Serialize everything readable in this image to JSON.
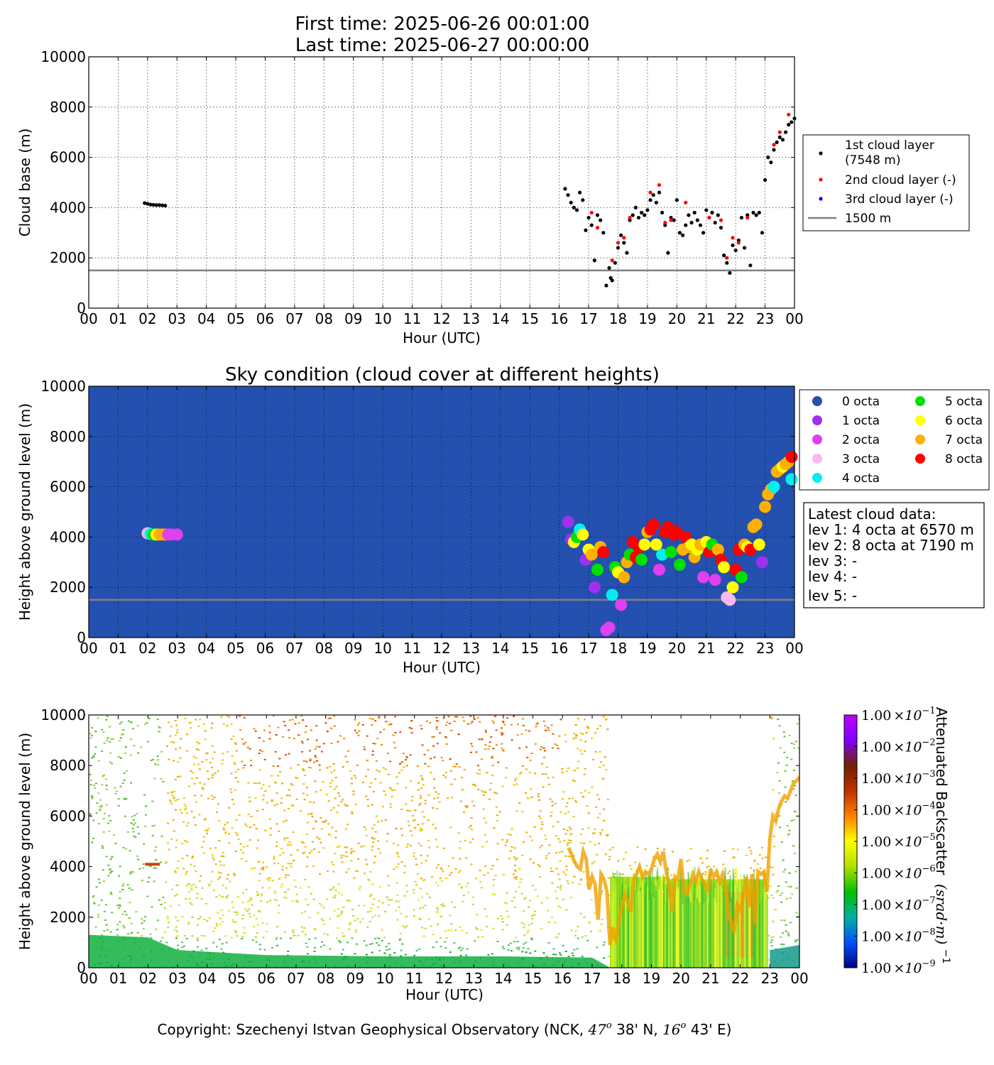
{
  "header": {
    "first_time": "First time: 2025-06-26 00:01:00",
    "last_time": "Last time: 2025-06-27 00:00:00"
  },
  "hour_ticks": [
    "00",
    "01",
    "02",
    "03",
    "04",
    "05",
    "06",
    "07",
    "08",
    "09",
    "10",
    "11",
    "12",
    "13",
    "14",
    "15",
    "16",
    "17",
    "18",
    "19",
    "20",
    "21",
    "22",
    "23",
    "00"
  ],
  "height_ticks": [
    "0",
    "2000",
    "4000",
    "6000",
    "8000",
    "10000"
  ],
  "colors": {
    "layer1": "#000000",
    "layer2": "#ff0000",
    "layer3": "#0000ff",
    "threshold": "#808080",
    "sky_bg": "#2450b0"
  },
  "chart_data": [
    {
      "type": "scatter",
      "xlabel": "Hour (UTC)",
      "ylabel": "Cloud base (m)",
      "xlim": [
        0,
        24
      ],
      "ylim": [
        0,
        10000
      ],
      "grid": true,
      "legend_position": "right",
      "series": [
        {
          "name": "1st cloud layer\n(7548 m)",
          "color": "#000000",
          "points": [
            [
              1.9,
              4180
            ],
            [
              2.0,
              4150
            ],
            [
              2.1,
              4120
            ],
            [
              2.2,
              4110
            ],
            [
              2.3,
              4100
            ],
            [
              2.4,
              4100
            ],
            [
              2.5,
              4090
            ],
            [
              2.6,
              4080
            ],
            [
              16.2,
              4750
            ],
            [
              16.3,
              4500
            ],
            [
              16.4,
              4200
            ],
            [
              16.5,
              4000
            ],
            [
              16.6,
              3900
            ],
            [
              16.7,
              4600
            ],
            [
              16.8,
              4300
            ],
            [
              16.9,
              3100
            ],
            [
              17.0,
              3600
            ],
            [
              17.1,
              3300
            ],
            [
              17.2,
              1900
            ],
            [
              17.3,
              3700
            ],
            [
              17.4,
              3500
            ],
            [
              17.5,
              3000
            ],
            [
              17.6,
              900
            ],
            [
              17.7,
              1600
            ],
            [
              17.75,
              1200
            ],
            [
              17.8,
              1100
            ],
            [
              17.9,
              1800
            ],
            [
              18.0,
              2400
            ],
            [
              18.1,
              2900
            ],
            [
              18.2,
              2600
            ],
            [
              18.3,
              2200
            ],
            [
              18.4,
              3500
            ],
            [
              18.5,
              3700
            ],
            [
              18.6,
              4000
            ],
            [
              18.7,
              3600
            ],
            [
              18.8,
              3800
            ],
            [
              18.9,
              3700
            ],
            [
              19.0,
              3900
            ],
            [
              19.1,
              4300
            ],
            [
              19.2,
              4500
            ],
            [
              19.3,
              4200
            ],
            [
              19.4,
              4600
            ],
            [
              19.5,
              3800
            ],
            [
              19.6,
              3300
            ],
            [
              19.7,
              2200
            ],
            [
              19.8,
              3600
            ],
            [
              19.9,
              3500
            ],
            [
              20.0,
              4300
            ],
            [
              20.1,
              3000
            ],
            [
              20.2,
              2900
            ],
            [
              20.3,
              3300
            ],
            [
              20.4,
              3700
            ],
            [
              20.5,
              3400
            ],
            [
              20.6,
              3800
            ],
            [
              20.7,
              3500
            ],
            [
              20.8,
              3300
            ],
            [
              20.9,
              3000
            ],
            [
              21.0,
              3900
            ],
            [
              21.1,
              3600
            ],
            [
              21.2,
              3800
            ],
            [
              21.3,
              3400
            ],
            [
              21.4,
              3700
            ],
            [
              21.5,
              3200
            ],
            [
              21.6,
              2100
            ],
            [
              21.7,
              1800
            ],
            [
              21.8,
              1400
            ],
            [
              21.9,
              2500
            ],
            [
              22.0,
              2300
            ],
            [
              22.1,
              2700
            ],
            [
              22.2,
              3600
            ],
            [
              22.3,
              2400
            ],
            [
              22.4,
              3700
            ],
            [
              22.5,
              1700
            ],
            [
              22.6,
              3800
            ],
            [
              22.7,
              3700
            ],
            [
              22.8,
              3800
            ],
            [
              22.9,
              3000
            ],
            [
              23.0,
              5100
            ],
            [
              23.1,
              6000
            ],
            [
              23.2,
              5800
            ],
            [
              23.3,
              6300
            ],
            [
              23.4,
              6600
            ],
            [
              23.5,
              6800
            ],
            [
              23.6,
              6700
            ],
            [
              23.7,
              7000
            ],
            [
              23.8,
              7300
            ],
            [
              23.9,
              7400
            ],
            [
              24.0,
              7548
            ]
          ]
        },
        {
          "name": "2nd cloud layer (-)",
          "color": "#ff0000",
          "points": [
            [
              17.1,
              3800
            ],
            [
              17.3,
              3200
            ],
            [
              17.8,
              1900
            ],
            [
              18.0,
              2600
            ],
            [
              18.2,
              2800
            ],
            [
              18.4,
              3600
            ],
            [
              19.1,
              4600
            ],
            [
              19.4,
              4900
            ],
            [
              19.6,
              3400
            ],
            [
              19.8,
              3500
            ],
            [
              20.3,
              4200
            ],
            [
              21.1,
              3600
            ],
            [
              21.5,
              3500
            ],
            [
              21.7,
              2000
            ],
            [
              21.9,
              2800
            ],
            [
              22.1,
              2600
            ],
            [
              22.4,
              3600
            ],
            [
              23.3,
              6500
            ],
            [
              23.5,
              7000
            ],
            [
              23.8,
              7700
            ]
          ]
        },
        {
          "name": "3rd cloud layer (-)",
          "color": "#0000ff",
          "points": []
        },
        {
          "name": "1500 m",
          "color": "#808080",
          "type": "hline",
          "y": 1500
        }
      ]
    },
    {
      "type": "scatter",
      "title": "Sky condition (cloud cover at different heights)",
      "xlabel": "Hour (UTC)",
      "ylabel": "Height above ground level (m)",
      "xlim": [
        0,
        24
      ],
      "ylim": [
        0,
        10000
      ],
      "grid": true,
      "background": "#2450b0",
      "threshold_m": 1500,
      "legend": [
        {
          "label": "0 octa",
          "color": "#2450b0"
        },
        {
          "label": "1 octa",
          "color": "#9f30f0"
        },
        {
          "label": "2 octa",
          "color": "#e040f0"
        },
        {
          "label": "3 octa",
          "color": "#f8b8f0"
        },
        {
          "label": "4 octa",
          "color": "#00f0f0"
        },
        {
          "label": "5 octa",
          "color": "#00e000"
        },
        {
          "label": "6 octa",
          "color": "#ffff00"
        },
        {
          "label": "7 octa",
          "color": "#ffb000"
        },
        {
          "label": "8 octa",
          "color": "#ff0000"
        }
      ],
      "points": [
        [
          2.0,
          4150,
          3
        ],
        [
          2.1,
          4120,
          4
        ],
        [
          2.2,
          4100,
          5
        ],
        [
          2.3,
          4100,
          6
        ],
        [
          2.4,
          4100,
          7
        ],
        [
          2.5,
          4100,
          7
        ],
        [
          2.6,
          4100,
          7
        ],
        [
          2.7,
          4100,
          2
        ],
        [
          2.8,
          4100,
          2
        ],
        [
          3.0,
          4100,
          2
        ],
        [
          16.3,
          4600,
          1
        ],
        [
          16.4,
          3900,
          1
        ],
        [
          16.5,
          3800,
          6
        ],
        [
          16.6,
          4000,
          5
        ],
        [
          16.7,
          4300,
          4
        ],
        [
          16.8,
          4100,
          6
        ],
        [
          16.9,
          3100,
          1
        ],
        [
          17.0,
          3500,
          6
        ],
        [
          17.1,
          3300,
          7
        ],
        [
          17.2,
          2000,
          1
        ],
        [
          17.3,
          2700,
          5
        ],
        [
          17.4,
          3600,
          7
        ],
        [
          17.5,
          3400,
          8
        ],
        [
          17.6,
          300,
          2
        ],
        [
          17.7,
          400,
          2
        ],
        [
          17.8,
          1700,
          4
        ],
        [
          17.9,
          2800,
          5
        ],
        [
          18.0,
          2600,
          6
        ],
        [
          18.1,
          1300,
          2
        ],
        [
          18.2,
          2400,
          7
        ],
        [
          18.3,
          3000,
          7
        ],
        [
          18.4,
          3300,
          5
        ],
        [
          18.5,
          3800,
          8
        ],
        [
          18.6,
          3200,
          8
        ],
        [
          18.7,
          3600,
          8
        ],
        [
          18.8,
          3100,
          5
        ],
        [
          18.9,
          3700,
          6
        ],
        [
          19.0,
          4200,
          7
        ],
        [
          19.1,
          4300,
          8
        ],
        [
          19.2,
          4500,
          8
        ],
        [
          19.3,
          3700,
          6
        ],
        [
          19.4,
          2700,
          2
        ],
        [
          19.5,
          3300,
          4
        ],
        [
          19.6,
          4200,
          8
        ],
        [
          19.7,
          4400,
          8
        ],
        [
          19.8,
          3400,
          5
        ],
        [
          19.9,
          4100,
          8
        ],
        [
          20.0,
          4200,
          8
        ],
        [
          20.1,
          2900,
          5
        ],
        [
          20.2,
          3500,
          7
        ],
        [
          20.3,
          4000,
          8
        ],
        [
          20.4,
          3600,
          7
        ],
        [
          20.5,
          3700,
          6
        ],
        [
          20.6,
          3200,
          7
        ],
        [
          20.7,
          3500,
          6
        ],
        [
          20.8,
          3700,
          7
        ],
        [
          20.9,
          2400,
          2
        ],
        [
          21.0,
          3800,
          6
        ],
        [
          21.1,
          3400,
          8
        ],
        [
          21.2,
          3700,
          5
        ],
        [
          21.3,
          2300,
          2
        ],
        [
          21.4,
          3500,
          7
        ],
        [
          21.5,
          3100,
          8
        ],
        [
          21.6,
          2800,
          6
        ],
        [
          21.7,
          1600,
          3
        ],
        [
          21.8,
          1500,
          3
        ],
        [
          21.9,
          2000,
          6
        ],
        [
          22.0,
          2700,
          8
        ],
        [
          22.1,
          3500,
          8
        ],
        [
          22.2,
          2400,
          5
        ],
        [
          22.3,
          3700,
          7
        ],
        [
          22.4,
          3600,
          6
        ],
        [
          22.5,
          3500,
          8
        ],
        [
          22.6,
          4400,
          7
        ],
        [
          22.7,
          4500,
          7
        ],
        [
          22.8,
          3700,
          6
        ],
        [
          22.9,
          3000,
          1
        ],
        [
          23.0,
          5200,
          7
        ],
        [
          23.1,
          5700,
          7
        ],
        [
          23.2,
          5900,
          7
        ],
        [
          23.3,
          6000,
          4
        ],
        [
          23.4,
          6600,
          7
        ],
        [
          23.5,
          6700,
          7
        ],
        [
          23.6,
          6800,
          6
        ],
        [
          23.7,
          6900,
          7
        ],
        [
          23.8,
          7000,
          7
        ],
        [
          23.9,
          6300,
          4
        ],
        [
          24.0,
          7190,
          8
        ]
      ],
      "latest_cloud_data": [
        "Latest cloud data:",
        "lev 1: 4 octa at 6570 m",
        "lev 2: 8 octa at 7190 m",
        "lev 3: -",
        "lev 4: -",
        "lev 5: -"
      ]
    },
    {
      "type": "heatmap",
      "xlabel": "Hour (UTC)",
      "ylabel": "Height above ground level (m)",
      "xlim": [
        0,
        24
      ],
      "ylim": [
        0,
        10000
      ],
      "colorbar_label": "Attenuated Backscatter",
      "colorbar_unit": "(srad·m)",
      "colorbar_unit_exp": "−1",
      "colorbar_scale": "log",
      "colorbar_ticks": [
        {
          "mant": "1.00",
          "times": "×10",
          "exp": "−9"
        },
        {
          "mant": "1.00",
          "times": "×10",
          "exp": "−8"
        },
        {
          "mant": "1.00",
          "times": "×10",
          "exp": "−7"
        },
        {
          "mant": "1.00",
          "times": "×10",
          "exp": "−6"
        },
        {
          "mant": "1.00",
          "times": "×10",
          "exp": "−5"
        },
        {
          "mant": "1.00",
          "times": "×10",
          "exp": "−4"
        },
        {
          "mant": "1.00",
          "times": "×10",
          "exp": "−3"
        },
        {
          "mant": "1.00",
          "times": "×10",
          "exp": "−2"
        },
        {
          "mant": "1.00",
          "times": "×10",
          "exp": "−1"
        }
      ],
      "colorbar_colors": [
        "#000080",
        "#0050ff",
        "#00b0a0",
        "#00c000",
        "#b0e000",
        "#ffff00",
        "#ff8000",
        "#c03000",
        "#702000",
        "#8000ff",
        "#c000ff"
      ]
    }
  ],
  "footer": {
    "copyright_prefix": "Copyright: Szechenyi Istvan Geophysical Observatory (NCK, ",
    "lat": "47",
    "lat_min": " 38' N, ",
    "lon": "16",
    "lon_min": " 43' E)",
    "degree_mark": "o"
  }
}
